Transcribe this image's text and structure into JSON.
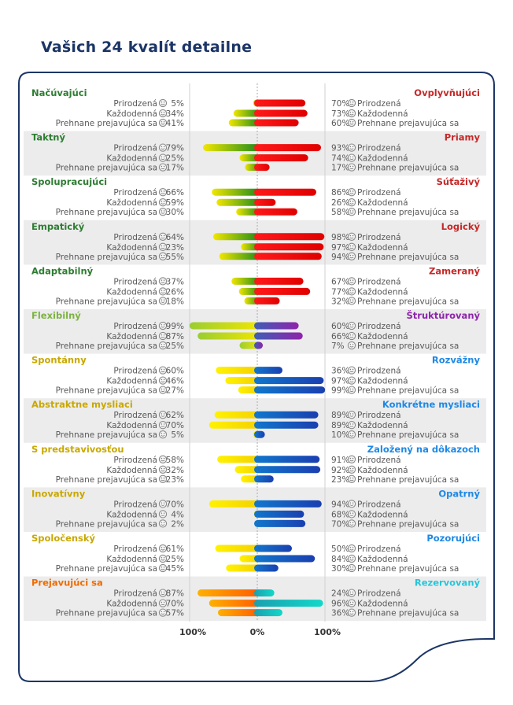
{
  "page": {
    "title": "Vašich 24 kvalít detailne"
  },
  "chart_data": {
    "type": "bar",
    "orientation": "horizontal",
    "layout": "diverging",
    "row_labels": [
      "Prirodzená",
      "Každodenná",
      "Prehnane prejavujúca sa"
    ],
    "axis": {
      "left": "100%",
      "center": "0%",
      "right": "100%",
      "range": [
        -100,
        100
      ]
    },
    "pairs": [
      {
        "left_name": "Načúvajúci",
        "right_name": "Ovplyvňujúci",
        "left_color": "#2e7d32",
        "right_color": "#c62828",
        "left_values": [
          5,
          34,
          41
        ],
        "right_values": [
          70,
          73,
          60
        ]
      },
      {
        "left_name": "Taktný",
        "right_name": "Priamy",
        "left_color": "#2e7d32",
        "right_color": "#c62828",
        "left_values": [
          79,
          25,
          17
        ],
        "right_values": [
          93,
          74,
          17
        ]
      },
      {
        "left_name": "Spolupracujúci",
        "right_name": "Súťaživý",
        "left_color": "#2e7d32",
        "right_color": "#c62828",
        "left_values": [
          66,
          59,
          30
        ],
        "right_values": [
          86,
          26,
          58
        ]
      },
      {
        "left_name": "Empatický",
        "right_name": "Logický",
        "left_color": "#2e7d32",
        "right_color": "#c62828",
        "left_values": [
          64,
          23,
          55
        ],
        "right_values": [
          98,
          97,
          94
        ]
      },
      {
        "left_name": "Adaptabilný",
        "right_name": "Zameraný",
        "left_color": "#2e7d32",
        "right_color": "#c62828",
        "left_values": [
          37,
          26,
          18
        ],
        "right_values": [
          67,
          77,
          32
        ]
      },
      {
        "left_name": "Flexibilný",
        "right_name": "Štruktúrovaný",
        "left_color": "#7cb342",
        "right_color": "#8e24aa",
        "left_values": [
          99,
          87,
          25
        ],
        "right_values": [
          60,
          66,
          7
        ]
      },
      {
        "left_name": "Spontánny",
        "right_name": "Rozvážny",
        "left_color": "#c9a800",
        "right_color": "#1e88e5",
        "left_values": [
          60,
          46,
          27
        ],
        "right_values": [
          36,
          97,
          99
        ]
      },
      {
        "left_name": "Abstraktne mysliaci",
        "right_name": "Konkrétne mysliaci",
        "left_color": "#c9a800",
        "right_color": "#1e88e5",
        "left_values": [
          62,
          70,
          5
        ],
        "right_values": [
          89,
          89,
          10
        ]
      },
      {
        "left_name": "S predstavivosťou",
        "right_name": "Založený na dôkazoch",
        "left_color": "#c9a800",
        "right_color": "#1e88e5",
        "left_values": [
          58,
          32,
          23
        ],
        "right_values": [
          91,
          92,
          23
        ]
      },
      {
        "left_name": "Inovatívny",
        "right_name": "Opatrný",
        "left_color": "#c9a800",
        "right_color": "#1e88e5",
        "left_values": [
          70,
          4,
          2
        ],
        "right_values": [
          94,
          68,
          70
        ]
      },
      {
        "left_name": "Spoločenský",
        "right_name": "Pozorujúci",
        "left_color": "#c9a800",
        "right_color": "#1e88e5",
        "left_values": [
          61,
          25,
          45
        ],
        "right_values": [
          50,
          84,
          30
        ]
      },
      {
        "left_name": "Prejavujúci sa",
        "right_name": "Rezervovaný",
        "left_color": "#ef6c00",
        "right_color": "#26c6da",
        "left_values": [
          87,
          70,
          57
        ],
        "right_values": [
          24,
          96,
          36
        ]
      }
    ],
    "gradients": {
      "green": [
        "#f2e600",
        "#1b8a1b"
      ],
      "red": [
        "#ff1a1a",
        "#e00000"
      ],
      "yellow": [
        "#fff200",
        "#f4d000"
      ],
      "blue": [
        "#1177cc",
        "#1a3fb0"
      ],
      "purple": [
        "#3f5fb5",
        "#8e24aa"
      ],
      "yellowgreen": [
        "#9acd32",
        "#f2e600"
      ],
      "orange": [
        "#ffb000",
        "#ff5a00"
      ],
      "teal": [
        "#1aa0b0",
        "#12d8c8"
      ]
    }
  }
}
